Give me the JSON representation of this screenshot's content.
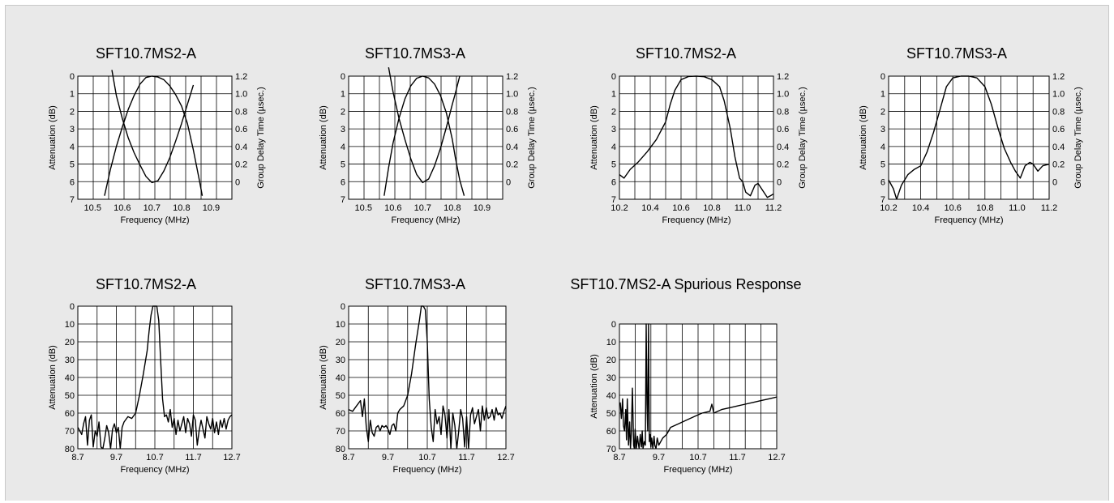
{
  "chart_data": [
    {
      "type": "line",
      "title": "SFT10.7MS2-A",
      "xlabel": "Frequency (MHz)",
      "ylabel": "Attenuation (dB)",
      "ylabel_right": "Group Delay Time (µsec.)",
      "xlim": [
        10.45,
        10.97
      ],
      "ylim": [
        0,
        7
      ],
      "ylim_right": [
        -0.2,
        1.2
      ],
      "xticks": [
        "10.5",
        "10.6",
        "10.7",
        "10.8",
        "10.9"
      ],
      "xtick_values": [
        10.5,
        10.6,
        10.7,
        10.8,
        10.9
      ],
      "yticks": [
        "0",
        "1",
        "2",
        "3",
        "4",
        "5",
        "6",
        "7"
      ],
      "yticks_right": [
        "1.2",
        "1.0",
        "0.8",
        "0.6",
        "0.4",
        "0.2",
        "0"
      ],
      "grid": true,
      "series": [
        {
          "axis": "left",
          "x": [
            10.54,
            10.56,
            10.58,
            10.6,
            10.62,
            10.64,
            10.66,
            10.68,
            10.7,
            10.72,
            10.74,
            10.76,
            10.78,
            10.8,
            10.82,
            10.84,
            10.86,
            10.87
          ],
          "y": [
            6.8,
            5.3,
            4.0,
            2.9,
            1.9,
            1.1,
            0.45,
            0.08,
            0.0,
            0.05,
            0.2,
            0.55,
            1.05,
            1.7,
            2.7,
            4.2,
            5.9,
            6.8
          ]
        },
        {
          "axis": "right",
          "x": [
            10.565,
            10.58,
            10.6,
            10.62,
            10.64,
            10.66,
            10.68,
            10.7,
            10.72,
            10.74,
            10.76,
            10.78,
            10.8,
            10.82,
            10.84
          ],
          "y": [
            1.27,
            0.98,
            0.72,
            0.5,
            0.33,
            0.19,
            0.06,
            -0.01,
            0.01,
            0.12,
            0.27,
            0.46,
            0.66,
            0.88,
            1.1
          ]
        }
      ]
    },
    {
      "type": "line",
      "title": "SFT10.7MS3-A",
      "xlabel": "Frequency (MHz)",
      "ylabel": "Attenuation (dB)",
      "ylabel_right": "Group Delay Time (µsec.)",
      "xlim": [
        10.45,
        10.97
      ],
      "ylim": [
        0,
        7
      ],
      "ylim_right": [
        -0.2,
        1.2
      ],
      "xticks": [
        "10.5",
        "10.6",
        "10.7",
        "10.8",
        "10.9"
      ],
      "xtick_values": [
        10.5,
        10.6,
        10.7,
        10.8,
        10.9
      ],
      "yticks": [
        "0",
        "1",
        "2",
        "3",
        "4",
        "5",
        "6",
        "7"
      ],
      "yticks_right": [
        "1.2",
        "1.0",
        "0.8",
        "0.6",
        "0.4",
        "0.2",
        "0"
      ],
      "grid": true,
      "series": [
        {
          "axis": "left",
          "x": [
            10.57,
            10.585,
            10.6,
            10.62,
            10.64,
            10.66,
            10.68,
            10.7,
            10.72,
            10.74,
            10.76,
            10.78,
            10.8,
            10.81,
            10.825,
            10.84
          ],
          "y": [
            6.8,
            5.2,
            3.8,
            2.4,
            1.3,
            0.55,
            0.12,
            0.0,
            0.1,
            0.45,
            1.1,
            2.1,
            3.6,
            4.6,
            5.9,
            6.8
          ]
        },
        {
          "axis": "right",
          "x": [
            10.585,
            10.6,
            10.62,
            10.64,
            10.66,
            10.68,
            10.7,
            10.72,
            10.74,
            10.76,
            10.78,
            10.8,
            10.81,
            10.825
          ],
          "y": [
            1.3,
            1.02,
            0.72,
            0.48,
            0.26,
            0.08,
            -0.01,
            0.03,
            0.18,
            0.38,
            0.62,
            0.88,
            1.0,
            1.2
          ]
        }
      ]
    },
    {
      "type": "line",
      "title": "SFT10.7MS2-A",
      "xlabel": "Frequency (MHz)",
      "ylabel": "Attenuation (dB)",
      "ylabel_right": "Group Delay Time (µsec.)",
      "xlim": [
        10.2,
        11.2
      ],
      "ylim": [
        0,
        7
      ],
      "ylim_right": [
        -0.2,
        1.2
      ],
      "xticks": [
        "10.2",
        "10.4",
        "10.6",
        "10.8",
        "11.0",
        "11.2"
      ],
      "xtick_values": [
        10.2,
        10.4,
        10.6,
        10.8,
        11.0,
        11.2
      ],
      "yticks": [
        "0",
        "1",
        "2",
        "3",
        "4",
        "5",
        "6",
        "7"
      ],
      "yticks_right": [
        "1.2",
        "1.0",
        "0.8",
        "0.6",
        "0.4",
        "0.2",
        "0"
      ],
      "grid": true,
      "series": [
        {
          "axis": "left",
          "x": [
            10.2,
            10.23,
            10.27,
            10.32,
            10.38,
            10.44,
            10.5,
            10.53,
            10.56,
            10.6,
            10.65,
            10.7,
            10.75,
            10.8,
            10.85,
            10.88,
            10.92,
            10.95,
            10.98,
            11.0,
            11.02,
            11.05,
            11.08,
            11.1,
            11.13,
            11.16,
            11.18,
            11.2
          ],
          "y": [
            5.6,
            5.8,
            5.3,
            4.9,
            4.3,
            3.6,
            2.6,
            1.6,
            0.8,
            0.2,
            0.02,
            0.0,
            0.03,
            0.2,
            0.6,
            1.4,
            3.0,
            4.6,
            5.8,
            6.0,
            6.6,
            6.8,
            6.2,
            6.1,
            6.5,
            6.9,
            6.8,
            6.7
          ]
        }
      ]
    },
    {
      "type": "line",
      "title": "SFT10.7MS3-A",
      "xlabel": "Frequency (MHz)",
      "ylabel": "Attenuation (dB)",
      "ylabel_right": "Group Delay Time (µsec.)",
      "xlim": [
        10.2,
        11.2
      ],
      "ylim": [
        0,
        7
      ],
      "ylim_right": [
        -0.2,
        1.2
      ],
      "xticks": [
        "10.2",
        "10.4",
        "10.6",
        "10.8",
        "11.0",
        "11.2"
      ],
      "xtick_values": [
        10.2,
        10.4,
        10.6,
        10.8,
        11.0,
        11.2
      ],
      "yticks": [
        "0",
        "1",
        "2",
        "3",
        "4",
        "5",
        "6",
        "7"
      ],
      "yticks_right": [
        "1.2",
        "1.0",
        "0.8",
        "0.6",
        "0.4",
        "0.2",
        "0"
      ],
      "grid": true,
      "series": [
        {
          "axis": "left",
          "x": [
            10.2,
            10.23,
            10.25,
            10.28,
            10.32,
            10.36,
            10.4,
            10.44,
            10.48,
            10.52,
            10.56,
            10.6,
            10.65,
            10.7,
            10.75,
            10.8,
            10.84,
            10.88,
            10.92,
            10.96,
            10.99,
            11.02,
            11.05,
            11.08,
            11.1,
            11.13,
            11.16,
            11.2
          ],
          "y": [
            5.9,
            6.4,
            7.0,
            6.2,
            5.6,
            5.3,
            5.1,
            4.3,
            3.2,
            1.9,
            0.6,
            0.1,
            0.0,
            0.0,
            0.1,
            0.6,
            1.6,
            2.9,
            4.1,
            4.9,
            5.4,
            5.8,
            5.1,
            4.9,
            5.0,
            5.4,
            5.1,
            5.0
          ]
        }
      ]
    },
    {
      "type": "line",
      "title": "SFT10.7MS2-A",
      "xlabel": "Frequency (MHz)",
      "ylabel": "Attenuation (dB)",
      "xlim": [
        8.7,
        12.7
      ],
      "ylim": [
        0,
        80
      ],
      "xticks": [
        "8.7",
        "9.7",
        "10.7",
        "11.7",
        "12.7"
      ],
      "xtick_values": [
        8.7,
        9.7,
        10.7,
        11.7,
        12.7
      ],
      "yticks": [
        "0",
        "10",
        "20",
        "30",
        "40",
        "50",
        "60",
        "70",
        "80"
      ],
      "grid": true,
      "series": [
        {
          "axis": "left",
          "x": [
            8.7,
            8.8,
            8.85,
            8.9,
            8.95,
            9.0,
            9.05,
            9.1,
            9.15,
            9.2,
            9.25,
            9.3,
            9.35,
            9.4,
            9.45,
            9.5,
            9.55,
            9.6,
            9.65,
            9.7,
            9.75,
            9.8,
            9.85,
            9.9,
            10.0,
            10.1,
            10.2,
            10.3,
            10.4,
            10.5,
            10.55,
            10.6,
            10.65,
            10.7,
            10.75,
            10.8,
            10.85,
            10.9,
            10.95,
            11.0,
            11.05,
            11.1,
            11.15,
            11.2,
            11.25,
            11.3,
            11.35,
            11.4,
            11.45,
            11.5,
            11.55,
            11.6,
            11.65,
            11.7,
            11.75,
            11.8,
            11.85,
            11.9,
            11.95,
            12.0,
            12.05,
            12.1,
            12.15,
            12.2,
            12.25,
            12.3,
            12.35,
            12.4,
            12.45,
            12.5,
            12.55,
            12.6,
            12.65,
            12.7
          ],
          "y": [
            68,
            72,
            66,
            62,
            78,
            64,
            61,
            79,
            70,
            73,
            65,
            79,
            80,
            74,
            67,
            71,
            80,
            69,
            66,
            71,
            68,
            80,
            68,
            65,
            62,
            63,
            60,
            50,
            38,
            25,
            14,
            5,
            0,
            0,
            0,
            8,
            30,
            52,
            62,
            61,
            65,
            58,
            68,
            63,
            72,
            64,
            70,
            66,
            62,
            71,
            63,
            66,
            73,
            61,
            64,
            78,
            70,
            64,
            69,
            74,
            62,
            66,
            69,
            63,
            71,
            65,
            72,
            64,
            68,
            63,
            69,
            64,
            62,
            61
          ]
        }
      ]
    },
    {
      "type": "line",
      "title": "SFT10.7MS3-A",
      "xlabel": "Frequency (MHz)",
      "ylabel": "Attenuation (dB)",
      "xlim": [
        8.7,
        12.7
      ],
      "ylim": [
        0,
        80
      ],
      "xticks": [
        "8.7",
        "9.7",
        "10.7",
        "11.7",
        "12.7"
      ],
      "xtick_values": [
        8.7,
        9.7,
        10.7,
        11.7,
        12.7
      ],
      "yticks": [
        "0",
        "10",
        "20",
        "30",
        "40",
        "50",
        "60",
        "70",
        "80"
      ],
      "grid": true,
      "series": [
        {
          "axis": "left",
          "x": [
            8.7,
            8.8,
            8.9,
            9.0,
            9.05,
            9.1,
            9.15,
            9.2,
            9.25,
            9.3,
            9.35,
            9.4,
            9.45,
            9.5,
            9.55,
            9.6,
            9.65,
            9.7,
            9.75,
            9.8,
            9.85,
            9.9,
            9.95,
            10.0,
            10.1,
            10.2,
            10.3,
            10.4,
            10.5,
            10.55,
            10.6,
            10.65,
            10.7,
            10.75,
            10.8,
            10.85,
            10.9,
            10.95,
            11.0,
            11.05,
            11.1,
            11.15,
            11.2,
            11.25,
            11.3,
            11.35,
            11.4,
            11.45,
            11.5,
            11.55,
            11.6,
            11.65,
            11.7,
            11.75,
            11.8,
            11.85,
            11.9,
            11.95,
            12.0,
            12.05,
            12.1,
            12.15,
            12.2,
            12.25,
            12.3,
            12.35,
            12.4,
            12.45,
            12.5,
            12.55,
            12.6,
            12.65,
            12.7
          ],
          "y": [
            58,
            59,
            56,
            53,
            62,
            52,
            68,
            76,
            64,
            71,
            73,
            68,
            67,
            70,
            67,
            68,
            67,
            69,
            72,
            67,
            66,
            70,
            60,
            58,
            56,
            50,
            38,
            22,
            8,
            0,
            0,
            2,
            20,
            52,
            68,
            76,
            58,
            66,
            62,
            72,
            56,
            61,
            74,
            58,
            80,
            60,
            67,
            80,
            70,
            58,
            63,
            79,
            62,
            80,
            61,
            57,
            66,
            62,
            58,
            70,
            56,
            64,
            57,
            63,
            62,
            58,
            64,
            57,
            61,
            60,
            63,
            59,
            56
          ]
        }
      ]
    },
    {
      "type": "line",
      "title": "SFT10.7MS2-A Spurious Response",
      "xlabel": "Frequency (MHz)",
      "ylabel": "Attenuation (dB)",
      "xlim": [
        8.7,
        12.7
      ],
      "ylim": [
        0,
        70
      ],
      "xticks": [
        "8.7",
        "9.7",
        "10.7",
        "11.7",
        "12.7"
      ],
      "xtick_values": [
        8.7,
        9.7,
        10.7,
        11.7,
        12.7
      ],
      "yticks": [
        "0",
        "10",
        "20",
        "30",
        "40",
        "50",
        "60",
        "70"
      ],
      "grid": true,
      "series": [
        {
          "axis": "left",
          "x": [
            8.72,
            8.75,
            8.78,
            8.8,
            8.83,
            8.86,
            8.88,
            8.9,
            8.93,
            8.96,
            8.98,
            9.0,
            9.03,
            9.06,
            9.08,
            9.1,
            9.13,
            9.16,
            9.18,
            9.2,
            9.23,
            9.26,
            9.28,
            9.3,
            9.33,
            9.36,
            9.38,
            9.4,
            9.42,
            9.44,
            9.46,
            9.48,
            9.5,
            9.52,
            9.55,
            9.58,
            9.6,
            9.63,
            9.66,
            9.7,
            9.8,
            9.9,
            10.0,
            10.2,
            10.4,
            10.6,
            10.8,
            11.0,
            11.05,
            11.1,
            11.3,
            11.5,
            11.7,
            11.9,
            12.1,
            12.3,
            12.5,
            12.7
          ],
          "y": [
            44,
            53,
            42,
            57,
            60,
            48,
            65,
            42,
            68,
            55,
            70,
            62,
            36,
            68,
            70,
            59,
            70,
            63,
            67,
            70,
            62,
            69,
            60,
            70,
            66,
            68,
            0,
            45,
            60,
            0,
            66,
            62,
            69,
            64,
            70,
            63,
            68,
            70,
            64,
            68,
            64,
            62,
            58,
            56,
            54,
            52,
            50,
            49,
            45,
            50,
            48,
            47,
            46,
            45,
            44,
            43,
            42,
            41
          ]
        }
      ]
    }
  ]
}
